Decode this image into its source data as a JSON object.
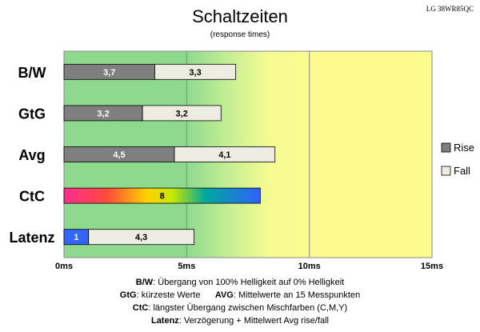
{
  "chart_data": {
    "type": "bar",
    "orientation": "horizontal",
    "stacked": true,
    "title": "Schaltzeiten",
    "subtitle": "(response times)",
    "model": "LG 38WR85QC",
    "categories": [
      "B/W",
      "GtG",
      "Avg",
      "CtC",
      "Latenz"
    ],
    "series": [
      {
        "name": "Rise",
        "color": "#7f7f7f",
        "values": [
          3.7,
          3.2,
          4.5,
          8,
          1
        ],
        "labels": [
          "3,7",
          "3,2",
          "4,5",
          "8",
          "1"
        ]
      },
      {
        "name": "Fall",
        "color": "#eeece1",
        "values": [
          3.3,
          3.2,
          4.1,
          null,
          4.3
        ],
        "labels": [
          "3,3",
          "3,2",
          "4,1",
          "",
          "4,3"
        ]
      }
    ],
    "special_fills": {
      "CtC": "rainbow-gradient",
      "Latenz_rise": "#3366ff"
    },
    "xlim": [
      0,
      15
    ],
    "xticks": [
      "0ms",
      "5ms",
      "10ms",
      "15ms"
    ],
    "background_zones": "green (0ms) to yellow (10-15ms)",
    "grid": true,
    "legend": {
      "position": "right",
      "items": [
        "Rise",
        "Fall"
      ]
    }
  },
  "notes": [
    {
      "key": "B/W",
      "text": ":  Übergang von 100% Helligkeit auf 0% Helligkeit"
    },
    {
      "key": "GtG",
      "text": ": kürzeste  Werte",
      "key2": "AVG",
      "text2": ": Mittelwerte  an 15 Messpunkten"
    },
    {
      "key": "CtC",
      "text": ": längster Übergang  zwischen Mischfarben  (C,M,Y)"
    },
    {
      "key": "Latenz",
      "text": ": Verzögerung  + Mittelwert  Avg rise/fall"
    }
  ]
}
